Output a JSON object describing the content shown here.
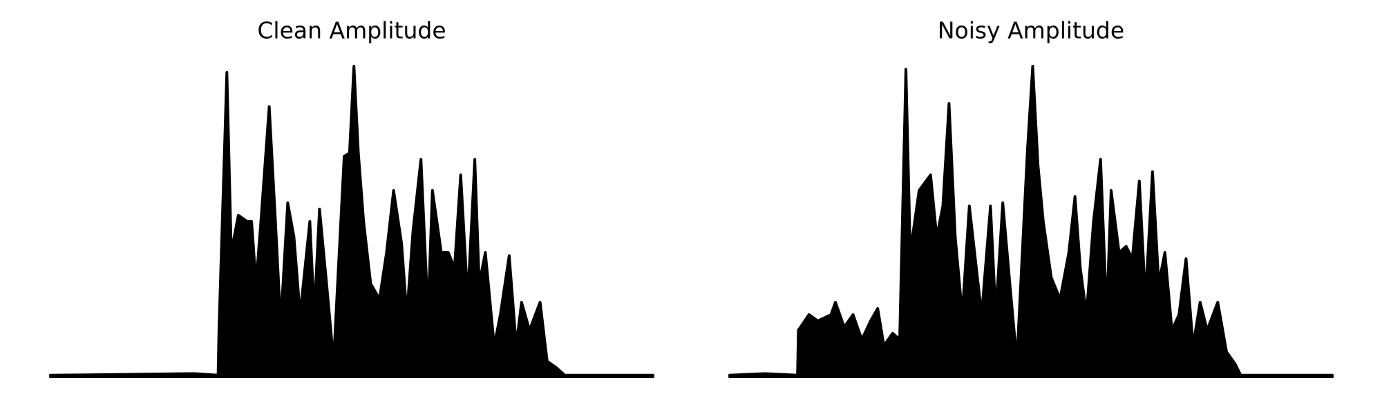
{
  "chart_data": [
    {
      "type": "area",
      "title": "Clean Amplitude",
      "color": "#000000",
      "xlim": [
        0,
        683
      ],
      "ylim": [
        0,
        1
      ],
      "x": [
        0,
        163,
        190,
        191,
        200,
        205,
        213,
        223,
        228,
        233,
        238,
        248,
        255,
        261,
        269,
        276,
        283,
        294,
        299,
        305,
        313,
        321,
        333,
        339,
        344,
        349,
        355,
        363,
        373,
        381,
        389,
        398,
        404,
        411,
        420,
        428,
        433,
        443,
        451,
        458,
        465,
        473,
        481,
        486,
        493,
        503,
        510,
        520,
        528,
        534,
        543,
        555,
        563,
        573,
        583,
        683
      ],
      "values": [
        0.005,
        0.01,
        0.005,
        0.15,
        0.98,
        0.4,
        0.52,
        0.5,
        0.5,
        0.3,
        0.48,
        0.87,
        0.5,
        0.17,
        0.56,
        0.45,
        0.2,
        0.5,
        0.2,
        0.54,
        0.3,
        0.05,
        0.71,
        0.72,
        1.0,
        0.72,
        0.5,
        0.3,
        0.25,
        0.4,
        0.6,
        0.43,
        0.2,
        0.47,
        0.7,
        0.2,
        0.6,
        0.4,
        0.4,
        0.35,
        0.65,
        0.25,
        0.7,
        0.3,
        0.4,
        0.1,
        0.2,
        0.39,
        0.1,
        0.24,
        0.15,
        0.24,
        0.05,
        0.03,
        0.005,
        0.005
      ]
    },
    {
      "type": "area",
      "title": "Noisy Amplitude",
      "color": "#000000",
      "xlim": [
        0,
        684
      ],
      "ylim": [
        0,
        1
      ],
      "x": [
        0,
        40,
        77,
        78,
        90,
        100,
        115,
        120,
        130,
        140,
        150,
        160,
        168,
        175,
        185,
        193,
        200,
        205,
        215,
        228,
        235,
        242,
        249,
        256,
        264,
        272,
        278,
        286,
        296,
        302,
        310,
        318,
        326,
        338,
        344,
        350,
        356,
        365,
        375,
        385,
        392,
        398,
        405,
        413,
        421,
        428,
        433,
        442,
        450,
        457,
        465,
        472,
        480,
        487,
        494,
        502,
        510,
        518,
        526,
        534,
        542,
        554,
        564,
        574,
        580,
        684
      ],
      "values": [
        0.005,
        0.01,
        0.005,
        0.15,
        0.2,
        0.18,
        0.2,
        0.24,
        0.16,
        0.2,
        0.12,
        0.18,
        0.22,
        0.1,
        0.14,
        0.12,
        0.99,
        0.4,
        0.6,
        0.65,
        0.45,
        0.55,
        0.88,
        0.45,
        0.2,
        0.55,
        0.4,
        0.2,
        0.55,
        0.2,
        0.56,
        0.3,
        0.05,
        0.73,
        1.0,
        0.68,
        0.5,
        0.32,
        0.25,
        0.4,
        0.58,
        0.35,
        0.2,
        0.5,
        0.7,
        0.2,
        0.6,
        0.4,
        0.42,
        0.38,
        0.63,
        0.25,
        0.66,
        0.3,
        0.4,
        0.15,
        0.2,
        0.38,
        0.1,
        0.24,
        0.15,
        0.24,
        0.08,
        0.04,
        0.005,
        0.005
      ]
    }
  ]
}
